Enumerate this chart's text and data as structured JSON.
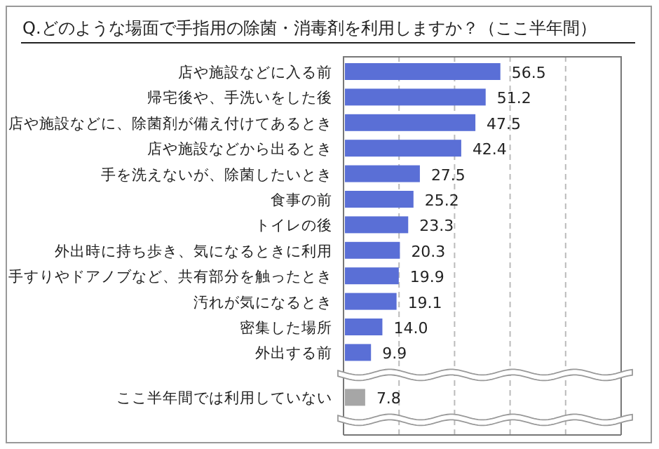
{
  "chart_data": {
    "type": "bar",
    "orientation": "horizontal",
    "title": "Q.どのような場面で手指用の除菌・消毒剤を利用しますか？（ここ半年間）",
    "categories": [
      "店や施設などに入る前",
      "帰宅後や、手洗いをした後",
      "店や施設などに、除菌剤が備え付けてあるとき",
      "店や施設などから出るとき",
      "手を洗えないが、除菌したいとき",
      "食事の前",
      "トイレの後",
      "外出時に持ち歩き、気になるときに利用",
      "手すりやドアノブなど、共有部分を触ったとき",
      "汚れが気になるとき",
      "密集した場所",
      "外出する前",
      "ここ半年間では利用していない"
    ],
    "values": [
      56.5,
      51.2,
      47.5,
      42.4,
      27.5,
      25.2,
      23.3,
      20.3,
      19.9,
      19.1,
      14.0,
      9.9,
      7.8
    ],
    "colors": [
      "#5a6fd6",
      "#5a6fd6",
      "#5a6fd6",
      "#5a6fd6",
      "#5a6fd6",
      "#5a6fd6",
      "#5a6fd6",
      "#5a6fd6",
      "#5a6fd6",
      "#5a6fd6",
      "#5a6fd6",
      "#5a6fd6",
      "#a6a6a6"
    ],
    "xlim": [
      0,
      100
    ],
    "xticks": [
      {
        "value": 0,
        "label": null
      },
      {
        "value": 20,
        "label": null
      },
      {
        "value": 40,
        "label": null
      },
      {
        "value": 60,
        "label": null
      },
      {
        "value": 80,
        "label": null
      },
      {
        "value": 100,
        "label": null
      }
    ],
    "value_labels": [
      "56.5",
      "51.2",
      "47.5",
      "42.4",
      "27.5",
      "25.2",
      "23.3",
      "20.3",
      "19.9",
      "19.1",
      "14.0",
      "9.9",
      "7.8"
    ],
    "grid": "x"
  }
}
